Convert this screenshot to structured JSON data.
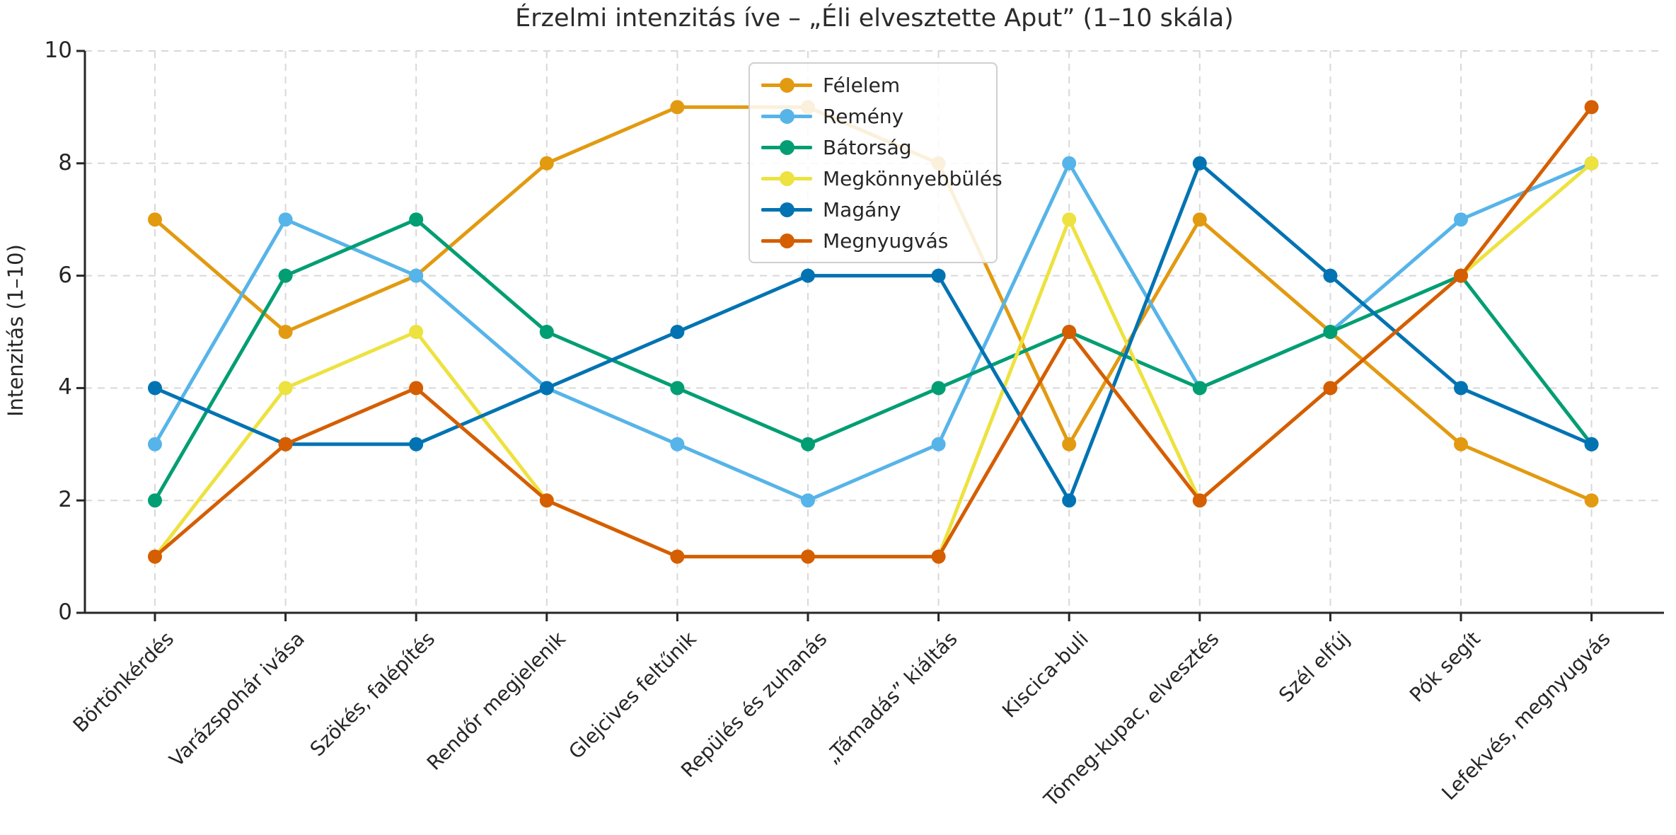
{
  "chart_data": {
    "type": "line",
    "title": "Érzelmi intenzitás íve – „Éli elvesztette Aput” (1–10 skála)",
    "xlabel": "",
    "ylabel": "Intenzitás (1–10)",
    "ylim": [
      0,
      10
    ],
    "yticks": [
      0,
      2,
      4,
      6,
      8,
      10
    ],
    "grid": "dashed both axes",
    "legend_position": "upper center",
    "marker": "circle",
    "categories": [
      "Börtönkérdés",
      "Varázspohár ivása",
      "Szökés, falépítés",
      "Rendőr megjelenik",
      "Glejcives feltűnik",
      "Repülés és zuhanás",
      "„Támadás” kiáltás",
      "Kiscica-buli",
      "Tömeg-kupac, elvesztés",
      "Szél elfúj",
      "Pók segít",
      "Lefekvés, megnyugvás"
    ],
    "series": [
      {
        "name": "Félelem",
        "color": "#E29A10",
        "values": [
          7,
          5,
          6,
          8,
          9,
          9,
          8,
          3,
          7,
          5,
          3,
          2
        ]
      },
      {
        "name": "Remény",
        "color": "#56B4E9",
        "values": [
          3,
          7,
          6,
          4,
          3,
          2,
          3,
          8,
          4,
          5,
          7,
          8
        ]
      },
      {
        "name": "Bátorság",
        "color": "#029E73",
        "values": [
          2,
          6,
          7,
          5,
          4,
          3,
          4,
          5,
          4,
          5,
          6,
          3
        ]
      },
      {
        "name": "Megkönnyebbülés",
        "color": "#EDE23F",
        "values": [
          1,
          4,
          5,
          2,
          1,
          1,
          1,
          7,
          2,
          4,
          6,
          8
        ]
      },
      {
        "name": "Magány",
        "color": "#0173B2",
        "values": [
          4,
          3,
          3,
          4,
          5,
          6,
          6,
          2,
          8,
          6,
          4,
          3
        ]
      },
      {
        "name": "Megnyugvás",
        "color": "#D55E00",
        "values": [
          1,
          3,
          4,
          2,
          1,
          1,
          1,
          5,
          2,
          4,
          6,
          9
        ]
      }
    ],
    "style": {
      "grid_color": "#d8d8d8",
      "spine_color": "#262626",
      "text_color": "#262626"
    }
  }
}
